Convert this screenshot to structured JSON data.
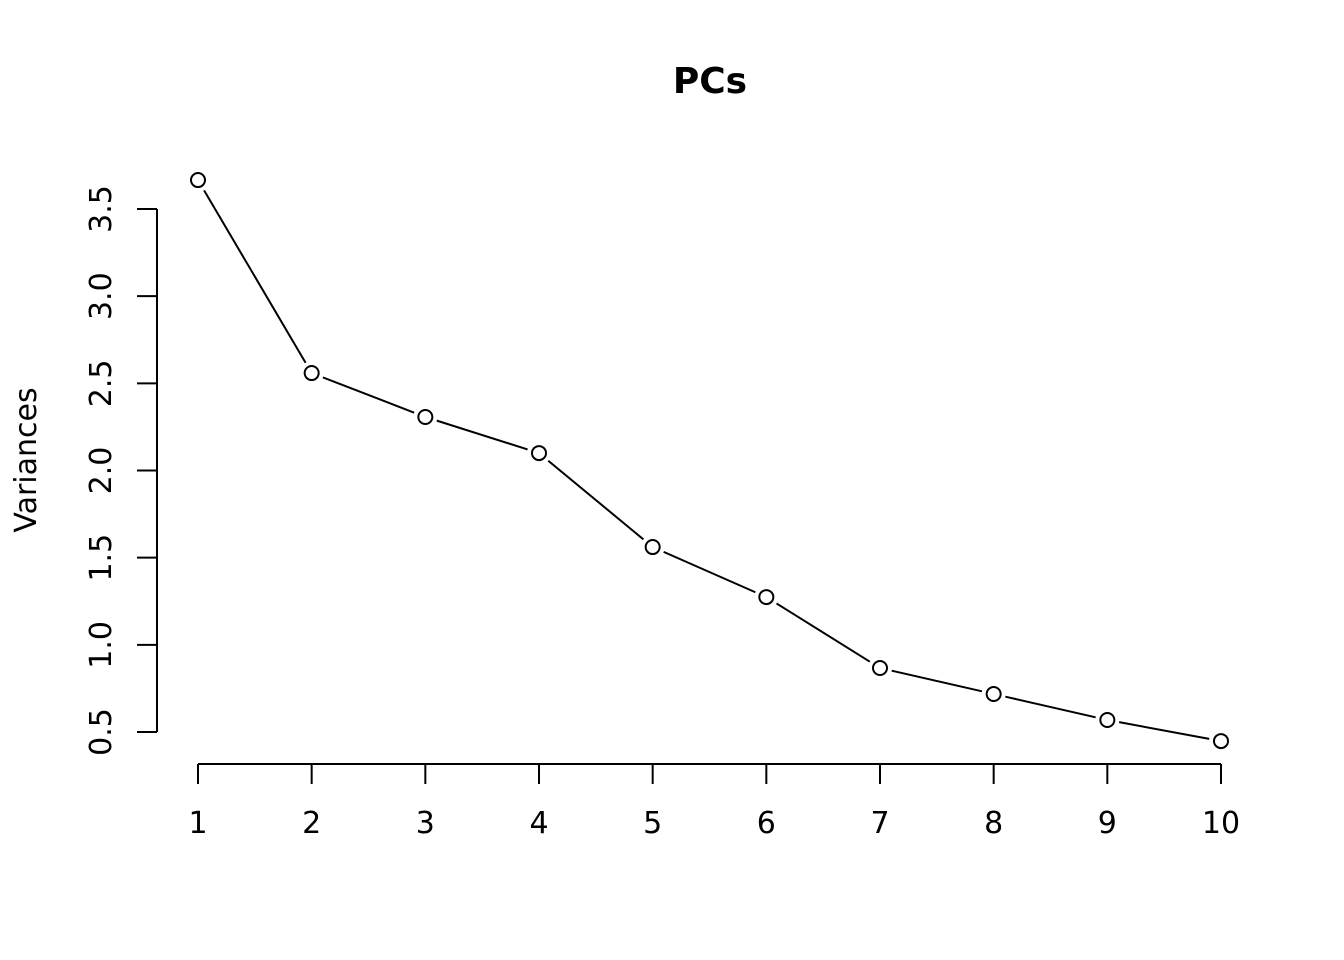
{
  "chart_data": {
    "type": "line",
    "title": "PCs",
    "xlabel": "",
    "ylabel": "Variances",
    "x": [
      1,
      2,
      3,
      4,
      5,
      6,
      7,
      8,
      9,
      10
    ],
    "values": [
      3.666,
      2.559,
      2.307,
      2.1,
      1.561,
      1.274,
      0.867,
      0.718,
      0.569,
      0.448
    ],
    "x_ticks": [
      "1",
      "2",
      "3",
      "4",
      "5",
      "6",
      "7",
      "8",
      "9",
      "10"
    ],
    "y_ticks": [
      "0.5",
      "1.0",
      "1.5",
      "2.0",
      "2.5",
      "3.0",
      "3.5"
    ],
    "ylim": [
      0.32,
      3.8
    ],
    "grid": false,
    "marker": "open-circle",
    "line_color": "#000000"
  }
}
